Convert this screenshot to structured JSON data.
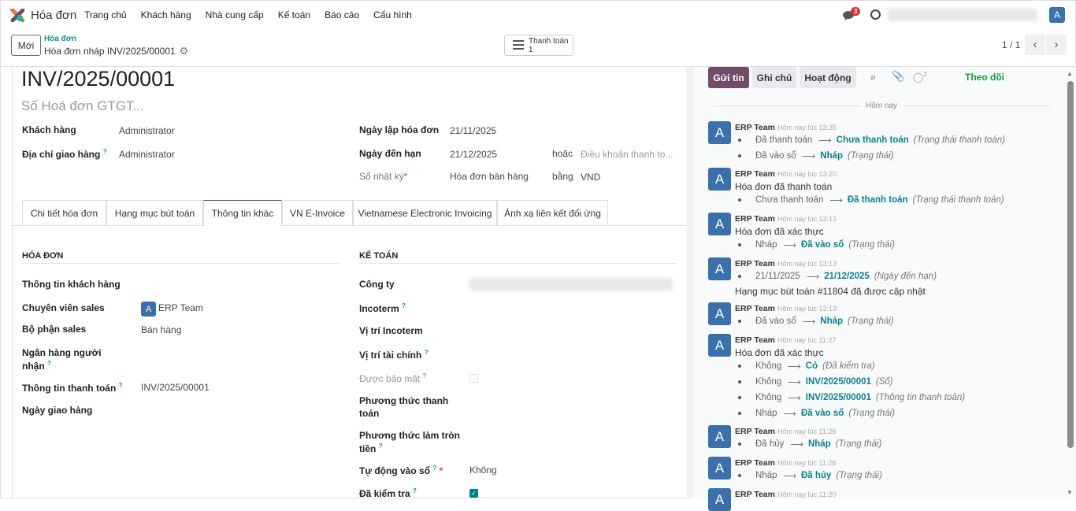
{
  "nav": {
    "app_name": "Hóa đơn",
    "menu": [
      "Trang chủ",
      "Khách hàng",
      "Nhà cung cấp",
      "Kế toán",
      "Báo cáo",
      "Cấu hình"
    ],
    "message_count": "3",
    "user_initial": "A"
  },
  "control": {
    "new_label": "Mới",
    "breadcrumb_parent": "Hóa đơn",
    "breadcrumb_current": "Hóa đơn nháp INV/2025/00001",
    "payment_button": "Thanh toán",
    "payment_count": "1",
    "pager": "1 / 1"
  },
  "form": {
    "name": "INV/2025/00001",
    "vat_placeholder": "Số Hoá đơn GTGT...",
    "customer_label": "Khách hàng",
    "customer": "Administrator",
    "delivery_label": "Địa chỉ giao hàng",
    "delivery": "Administrator",
    "invoice_date_label": "Ngày lập hóa đơn",
    "invoice_date": "21/11/2025",
    "due_label": "Ngày đến hạn",
    "due_date": "21/12/2025",
    "or_label": "hoặc",
    "terms_placeholder": "Điều khoản thanh to...",
    "journal_label": "Sổ nhật ký",
    "journal": "Hóa đơn bán hàng",
    "in_label": "bằng",
    "currency": "VND"
  },
  "tabs": [
    "Chi tiết hóa đơn",
    "Hạng mục bút toán",
    "Thông tin khác",
    "VN E-Invoice",
    "Vietnamese Electronic Invoicing",
    "Ánh xạ liên kết đối ứng"
  ],
  "active_tab": "Thông tin khác",
  "invoice_section": {
    "title": "HÓA ĐƠN",
    "customer_ref_label": "Thông tin khách hàng",
    "salesperson_label": "Chuyên viên sales",
    "salesperson": "ERP Team",
    "team_label": "Bộ phận sales",
    "team": "Bán hàng",
    "bank_label_1": "Ngân hàng người",
    "bank_label_2": "nhận",
    "payment_ref_label": "Thông tin thanh toán",
    "payment_ref": "INV/2025/00001",
    "delivery_date_label": "Ngày giao hàng"
  },
  "accounting_section": {
    "title": "KẾ TOÁN",
    "company_label": "Công ty",
    "incoterm_label": "Incoterm",
    "incoterm_loc_label": "Vị trí Incoterm",
    "fiscal_label": "Vị trí tài chính",
    "secured_label": "Được bảo mật",
    "secured": false,
    "pay_method_1": "Phương thức thanh",
    "pay_method_2": "toán",
    "rounding_1": "Phương thức làm tròn",
    "rounding_2": "tiền",
    "auto_post_label": "Tự động vào sổ",
    "auto_post": "Không",
    "checked_label": "Đã kiểm tra",
    "checked": true
  },
  "chatter": {
    "send": "Gửi tin",
    "note": "Ghi chú",
    "activity": "Hoạt động",
    "followers": "2",
    "follow": "Theo dõi",
    "today": "Hôm nay",
    "messages": [
      {
        "author": "ERP Team",
        "time": "Hôm nay lúc 13:35",
        "text": "",
        "changes": [
          {
            "old": "Đã thanh toán",
            "new": "Chưa thanh toán",
            "field": "(Trạng thái thanh toán)"
          },
          {
            "old": "Đã vào sổ",
            "new": "Nháp",
            "field": "(Trạng thái)"
          }
        ]
      },
      {
        "author": "ERP Team",
        "time": "Hôm nay lúc 13:20",
        "text": "Hóa đơn đã thanh toán",
        "changes": [
          {
            "old": "Chưa thanh toán",
            "new": "Đã thanh toán",
            "field": "(Trạng thái thanh toán)"
          }
        ]
      },
      {
        "author": "ERP Team",
        "time": "Hôm nay lúc 13:13",
        "text": "Hóa đơn đã xác thực",
        "changes": [
          {
            "old": "Nháp",
            "new": "Đã vào sổ",
            "field": "(Trạng thái)"
          }
        ]
      },
      {
        "author": "ERP Team",
        "time": "Hôm nay lúc 13:13",
        "text": "",
        "changes": [
          {
            "old": "21/11/2025",
            "new": "21/12/2025",
            "field": "(Ngày đến hạn)"
          }
        ],
        "after": "Hạng mục bút toán #11804 đã được cập nhật"
      },
      {
        "author": "ERP Team",
        "time": "Hôm nay lúc 13:13",
        "text": "",
        "changes": [
          {
            "old": "Đã vào sổ",
            "new": "Nháp",
            "field": "(Trạng thái)"
          }
        ]
      },
      {
        "author": "ERP Team",
        "time": "Hôm nay lúc 11:27",
        "text": "Hóa đơn đã xác thực",
        "changes": [
          {
            "old": "Không",
            "new": "Có",
            "field": "(Đã kiểm tra)"
          },
          {
            "old": "Không",
            "new": "INV/2025/00001",
            "field": "(Số)"
          },
          {
            "old": "Không",
            "new": "INV/2025/00001",
            "field": "(Thông tin thanh toán)"
          },
          {
            "old": "Nháp",
            "new": "Đã vào sổ",
            "field": "(Trạng thái)"
          }
        ]
      },
      {
        "author": "ERP Team",
        "time": "Hôm nay lúc 11:26",
        "text": "",
        "changes": [
          {
            "old": "Đã hủy",
            "new": "Nháp",
            "field": "(Trạng thái)"
          }
        ]
      },
      {
        "author": "ERP Team",
        "time": "Hôm nay lúc 11:26",
        "text": "",
        "changes": [
          {
            "old": "Nháp",
            "new": "Đã hủy",
            "field": "(Trạng thái)"
          }
        ]
      },
      {
        "author": "ERP Team",
        "time": "Hôm nay lúc 11:20",
        "text": "",
        "changes": []
      }
    ]
  }
}
